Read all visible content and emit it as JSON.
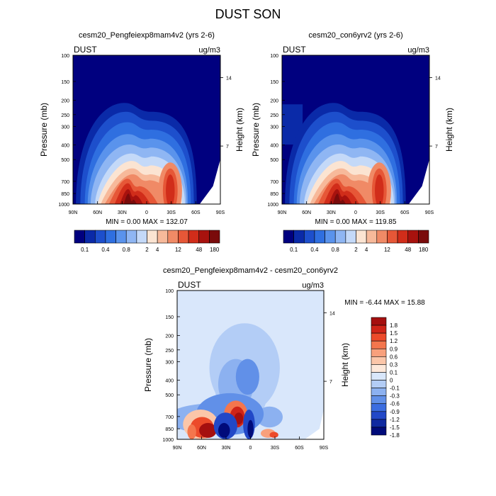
{
  "title": "DUST SON",
  "chart_data": [
    {
      "type": "heatmap",
      "title": "cesm20_Pengfeiexp8mam4v2 (yrs 2-6)",
      "left_label": "DUST",
      "right_label": "ug/m3",
      "ylabel": "Pressure (mb)",
      "y2label": "Height (km)",
      "x_ticks": [
        "90N",
        "60N",
        "30N",
        "0",
        "30S",
        "60S",
        "90S"
      ],
      "y_ticks": [
        "100",
        "150",
        "200",
        "250",
        "300",
        "400",
        "500",
        "700",
        "850",
        "1000"
      ],
      "y2_ticks": [
        "14",
        "7"
      ],
      "stats_text": "MIN =   0.00   MAX = 132.07",
      "min": 0.0,
      "max": 132.07,
      "colorbar_labels": [
        "0.1",
        "0.4",
        "0.8",
        "2",
        "4",
        "12",
        "48",
        "180"
      ]
    },
    {
      "type": "heatmap",
      "title": "cesm20_con6yrv2 (yrs 2-6)",
      "left_label": "DUST",
      "right_label": "ug/m3",
      "ylabel": "Pressure (mb)",
      "y2label": "Height (km)",
      "x_ticks": [
        "90N",
        "60N",
        "30N",
        "0",
        "30S",
        "60S",
        "90S"
      ],
      "y_ticks": [
        "100",
        "150",
        "200",
        "250",
        "300",
        "400",
        "500",
        "700",
        "850",
        "1000"
      ],
      "y2_ticks": [
        "14",
        "7"
      ],
      "stats_text": "MIN =   0.00   MAX = 119.85",
      "min": 0.0,
      "max": 119.85,
      "colorbar_labels": [
        "0.1",
        "0.4",
        "0.8",
        "2",
        "4",
        "12",
        "48",
        "180"
      ]
    },
    {
      "type": "heatmap",
      "title": "cesm20_Pengfeiexp8mam4v2 - cesm20_con6yrv2",
      "left_label": "DUST",
      "right_label": "ug/m3",
      "ylabel": "Pressure (mb)",
      "y2label": "Height (km)",
      "x_ticks": [
        "90N",
        "60N",
        "30N",
        "0",
        "30S",
        "60S",
        "90S"
      ],
      "y_ticks": [
        "100",
        "150",
        "200",
        "250",
        "300",
        "400",
        "500",
        "700",
        "850",
        "1000"
      ],
      "y2_ticks": [
        "14",
        "7"
      ],
      "stats_text": "MIN =  -6.44   MAX =  15.88",
      "min": -6.44,
      "max": 15.88,
      "colorbar_labels": [
        "1.8",
        "1.5",
        "1.2",
        "0.9",
        "0.6",
        "0.3",
        "0.1",
        "0",
        "-0.1",
        "-0.3",
        "-0.6",
        "-0.9",
        "-1.2",
        "-1.5",
        "-1.8"
      ]
    }
  ],
  "colors": {
    "seq": [
      "#00007f",
      "#0a2aa8",
      "#1d4fcc",
      "#2f6fe0",
      "#5a93ec",
      "#8fb6f3",
      "#c4d9f8",
      "#fbe4d2",
      "#f7b99a",
      "#f08a66",
      "#e65737",
      "#d12d1a",
      "#a8120e",
      "#7a0b0b"
    ],
    "diff": [
      "#a50f0f",
      "#cf2418",
      "#ec4a2a",
      "#f4764d",
      "#f8a07c",
      "#fbc6a9",
      "#fde8da",
      "#d9e7fb",
      "#b3cdf6",
      "#8cb1f0",
      "#6190e8",
      "#3b6de0",
      "#2248c7",
      "#102aa0",
      "#000b7a"
    ]
  }
}
